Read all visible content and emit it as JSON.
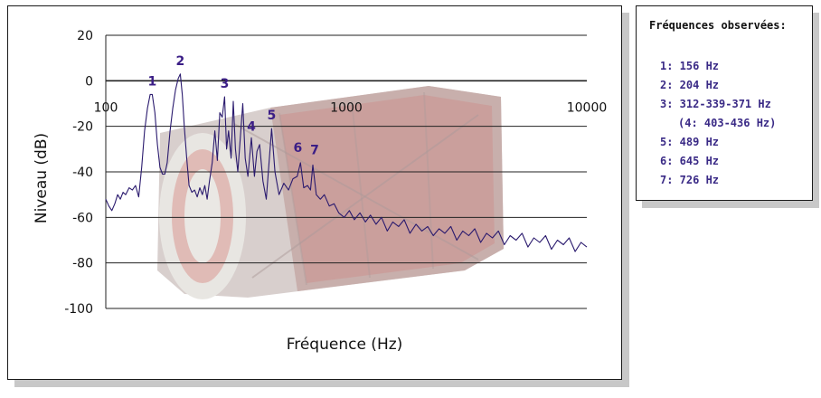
{
  "chart_data": {
    "type": "line",
    "xlabel": "Fréquence (Hz)",
    "ylabel": "Niveau (dB)",
    "x_scale": "log",
    "xlim": [
      100,
      10000
    ],
    "ylim": [
      -100,
      20
    ],
    "x_ticks": [
      "100",
      "1000",
      "10000"
    ],
    "y_ticks": [
      "20",
      "0",
      "-20",
      "-40",
      "-60",
      "-80",
      "-100"
    ],
    "grid": "horizontal",
    "series": [
      {
        "color": "#2a1a6e",
        "points": [
          [
            100,
            -52
          ],
          [
            103,
            -55
          ],
          [
            106,
            -57
          ],
          [
            109,
            -54
          ],
          [
            112,
            -50
          ],
          [
            115,
            -52
          ],
          [
            118,
            -49
          ],
          [
            121,
            -50
          ],
          [
            125,
            -47
          ],
          [
            129,
            -48
          ],
          [
            133,
            -46
          ],
          [
            137,
            -51
          ],
          [
            141,
            -38
          ],
          [
            145,
            -22
          ],
          [
            149,
            -12
          ],
          [
            153,
            -6
          ],
          [
            156,
            -6
          ],
          [
            160,
            -14
          ],
          [
            164,
            -28
          ],
          [
            168,
            -38
          ],
          [
            172,
            -41
          ],
          [
            176,
            -41
          ],
          [
            180,
            -36
          ],
          [
            185,
            -22
          ],
          [
            190,
            -12
          ],
          [
            195,
            -4
          ],
          [
            200,
            1
          ],
          [
            204,
            3
          ],
          [
            208,
            -6
          ],
          [
            212,
            -20
          ],
          [
            217,
            -34
          ],
          [
            222,
            -46
          ],
          [
            228,
            -49
          ],
          [
            234,
            -48
          ],
          [
            240,
            -51
          ],
          [
            246,
            -47
          ],
          [
            252,
            -50
          ],
          [
            258,
            -46
          ],
          [
            264,
            -52
          ],
          [
            270,
            -44
          ],
          [
            277,
            -36
          ],
          [
            284,
            -22
          ],
          [
            291,
            -35
          ],
          [
            298,
            -14
          ],
          [
            305,
            -16
          ],
          [
            312,
            -7
          ],
          [
            318,
            -30
          ],
          [
            324,
            -22
          ],
          [
            332,
            -34
          ],
          [
            339,
            -9
          ],
          [
            346,
            -30
          ],
          [
            354,
            -40
          ],
          [
            362,
            -26
          ],
          [
            371,
            -10
          ],
          [
            380,
            -34
          ],
          [
            390,
            -42
          ],
          [
            403,
            -25
          ],
          [
            415,
            -42
          ],
          [
            425,
            -31
          ],
          [
            436,
            -28
          ],
          [
            450,
            -44
          ],
          [
            465,
            -52
          ],
          [
            489,
            -21
          ],
          [
            505,
            -40
          ],
          [
            525,
            -50
          ],
          [
            550,
            -45
          ],
          [
            575,
            -48
          ],
          [
            600,
            -43
          ],
          [
            625,
            -42
          ],
          [
            645,
            -36
          ],
          [
            665,
            -47
          ],
          [
            690,
            -46
          ],
          [
            710,
            -48
          ],
          [
            726,
            -37
          ],
          [
            750,
            -50
          ],
          [
            780,
            -52
          ],
          [
            810,
            -50
          ],
          [
            850,
            -55
          ],
          [
            890,
            -54
          ],
          [
            930,
            -58
          ],
          [
            980,
            -60
          ],
          [
            1030,
            -57
          ],
          [
            1080,
            -61
          ],
          [
            1140,
            -58
          ],
          [
            1200,
            -62
          ],
          [
            1260,
            -59
          ],
          [
            1330,
            -63
          ],
          [
            1400,
            -60
          ],
          [
            1480,
            -66
          ],
          [
            1560,
            -62
          ],
          [
            1650,
            -64
          ],
          [
            1740,
            -61
          ],
          [
            1840,
            -67
          ],
          [
            1950,
            -63
          ],
          [
            2060,
            -66
          ],
          [
            2180,
            -64
          ],
          [
            2300,
            -68
          ],
          [
            2430,
            -65
          ],
          [
            2570,
            -67
          ],
          [
            2720,
            -64
          ],
          [
            2880,
            -70
          ],
          [
            3050,
            -66
          ],
          [
            3230,
            -68
          ],
          [
            3420,
            -65
          ],
          [
            3620,
            -71
          ],
          [
            3830,
            -67
          ],
          [
            4050,
            -69
          ],
          [
            4290,
            -66
          ],
          [
            4540,
            -72
          ],
          [
            4800,
            -68
          ],
          [
            5080,
            -70
          ],
          [
            5380,
            -67
          ],
          [
            5690,
            -73
          ],
          [
            6020,
            -69
          ],
          [
            6370,
            -71
          ],
          [
            6740,
            -68
          ],
          [
            7130,
            -74
          ],
          [
            7550,
            -70
          ],
          [
            7990,
            -72
          ],
          [
            8450,
            -69
          ],
          [
            8940,
            -75
          ],
          [
            9460,
            -71
          ],
          [
            10000,
            -73
          ]
        ]
      }
    ],
    "annotations": [
      {
        "text": "1",
        "x": 156,
        "y": -6
      },
      {
        "text": "2",
        "x": 204,
        "y": 3
      },
      {
        "text": "3",
        "x": 312,
        "y": -7
      },
      {
        "text": "4",
        "x": 403,
        "y": -25
      },
      {
        "text": "5",
        "x": 489,
        "y": -21
      },
      {
        "text": "6",
        "x": 645,
        "y": -36
      },
      {
        "text": "7",
        "x": 726,
        "y": -37
      }
    ]
  },
  "legend": {
    "title": "Fréquences observées:",
    "items": [
      "1: 156 Hz",
      "2: 204 Hz",
      "3: 312-339-371 Hz",
      "(4: 403-436 Hz)",
      "5: 489 Hz",
      "6: 645 Hz",
      "7: 726 Hz"
    ]
  },
  "colors": {
    "line": "#2a1a6e",
    "peak_label": "#3b1e86",
    "legend_text": "#3a2a86",
    "background_image_tint": "#8a6a68"
  },
  "background_image": "drum-photo"
}
